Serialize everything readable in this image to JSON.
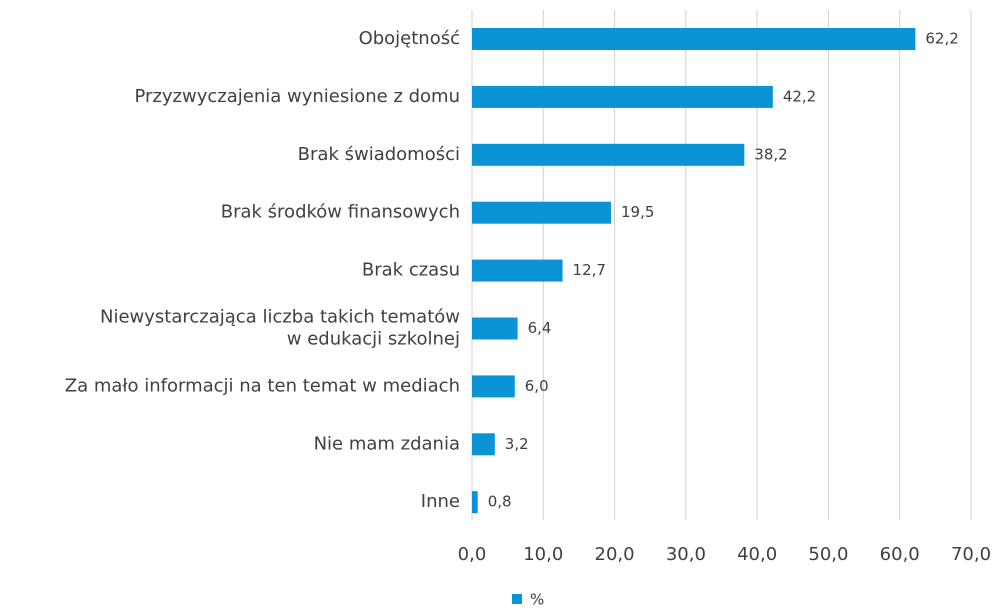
{
  "chart_data": {
    "type": "bar",
    "orientation": "horizontal",
    "categories": [
      "Obojętność",
      "Przyzwyczajenia wyniesione z domu",
      "Brak świadomości",
      "Brak środków finansowych",
      "Brak czasu",
      "Niewystarczająca liczba takich tematów\nw edukacji szkolnej",
      "Za mało informacji na ten temat w mediach",
      "Nie mam zdania",
      "Inne"
    ],
    "series": [
      {
        "name": "%",
        "color": "#0a93d5",
        "values": [
          62.2,
          42.2,
          38.2,
          19.5,
          12.7,
          6.4,
          6.0,
          3.2,
          0.8
        ],
        "value_labels": [
          "62,2",
          "42,2",
          "38,2",
          "19,5",
          "12,7",
          "6,4",
          "6,0",
          "3,2",
          "0,8"
        ]
      }
    ],
    "xlim": [
      0,
      70
    ],
    "xticks": [
      {
        "value": 0,
        "label": "0,0"
      },
      {
        "value": 10,
        "label": "10,0"
      },
      {
        "value": 20,
        "label": "20,0"
      },
      {
        "value": 30,
        "label": "30,0"
      },
      {
        "value": 40,
        "label": "40,0"
      },
      {
        "value": 50,
        "label": "50,0"
      },
      {
        "value": 60,
        "label": "60,0"
      },
      {
        "value": 70,
        "label": "70,0"
      }
    ],
    "grid": true,
    "legend": "bottom"
  }
}
